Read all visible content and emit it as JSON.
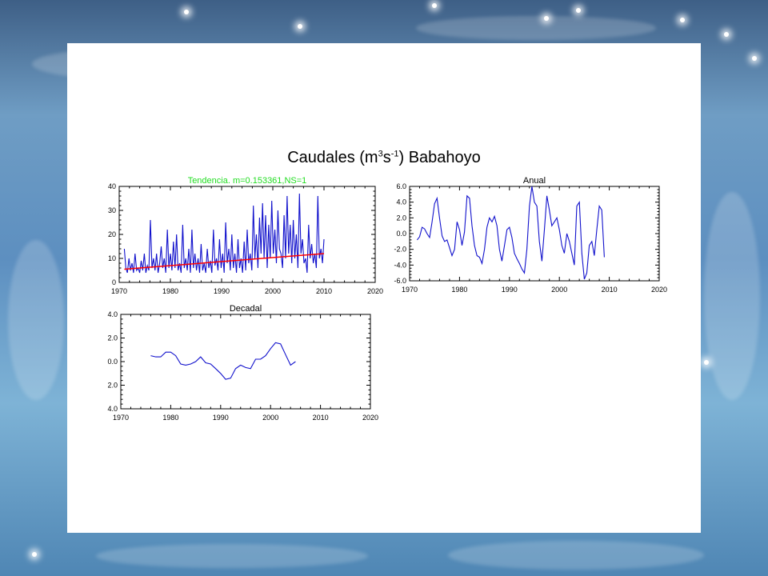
{
  "slide": {
    "title": {
      "prefix": "Caudales (m",
      "sup1": "3",
      "mid": "s",
      "sup2": "-1",
      "suffix": ") Babahoyo"
    }
  },
  "colors": {
    "line": "#1111cc",
    "trend": "#ff0000",
    "trend_label": "#22dd22"
  },
  "chart_data": [
    {
      "type": "line",
      "title": "Tendencia. m=0.153361,NS=1",
      "xlabel": "",
      "ylabel": "",
      "xlim": [
        1970,
        2020
      ],
      "ylim": [
        0,
        40
      ],
      "xticks": [
        "1970",
        "1980",
        "1990",
        "2000",
        "2010",
        "2020"
      ],
      "yticks": [
        "0",
        "10",
        "20",
        "30",
        "40"
      ],
      "grid": false,
      "series": [
        {
          "x": [
            1971.0,
            1971.3,
            1971.6,
            1971.9,
            1972.2,
            1972.5,
            1972.8,
            1973.1,
            1973.4,
            1973.7,
            1974.0,
            1974.3,
            1974.6,
            1974.9,
            1975.2,
            1975.5,
            1975.8,
            1976.1,
            1976.4,
            1976.7,
            1977.0,
            1977.3,
            1977.6,
            1977.9,
            1978.2,
            1978.5,
            1978.8,
            1979.1,
            1979.4,
            1979.7,
            1980.0,
            1980.3,
            1980.6,
            1980.9,
            1981.2,
            1981.5,
            1981.8,
            1982.1,
            1982.4,
            1982.7,
            1983.0,
            1983.3,
            1983.6,
            1983.9,
            1984.2,
            1984.5,
            1984.8,
            1985.1,
            1985.4,
            1985.7,
            1986.0,
            1986.3,
            1986.6,
            1986.9,
            1987.2,
            1987.5,
            1987.8,
            1988.1,
            1988.4,
            1988.7,
            1989.0,
            1989.3,
            1989.6,
            1989.9,
            1990.2,
            1990.5,
            1990.8,
            1991.1,
            1991.4,
            1991.7,
            1992.0,
            1992.3,
            1992.6,
            1992.9,
            1993.2,
            1993.5,
            1993.8,
            1994.1,
            1994.4,
            1994.7,
            1995.0,
            1995.3,
            1995.6,
            1995.9,
            1996.2,
            1996.5,
            1996.8,
            1997.1,
            1997.4,
            1997.7,
            1998.0,
            1998.3,
            1998.6,
            1998.9,
            1999.2,
            1999.5,
            1999.8,
            2000.1,
            2000.4,
            2000.7,
            2001.0,
            2001.3,
            2001.6,
            2001.9,
            2002.2,
            2002.5,
            2002.8,
            2003.1,
            2003.4,
            2003.7,
            2004.0,
            2004.3,
            2004.6,
            2004.9,
            2005.2,
            2005.5,
            2005.8,
            2006.1,
            2006.4,
            2006.7,
            2007.0,
            2007.3,
            2007.6,
            2007.9,
            2008.2,
            2008.5,
            2008.8,
            2009.1,
            2009.4,
            2009.7,
            2010.0
          ],
          "y": [
            14,
            6,
            4,
            10,
            5,
            8,
            4,
            12,
            5,
            6,
            4,
            9,
            5,
            12,
            4,
            7,
            5,
            26,
            6,
            10,
            5,
            12,
            4,
            8,
            15,
            6,
            10,
            4,
            22,
            6,
            12,
            5,
            17,
            6,
            20,
            5,
            8,
            4,
            24,
            6,
            10,
            5,
            14,
            4,
            22,
            6,
            12,
            5,
            10,
            4,
            16,
            5,
            8,
            4,
            14,
            6,
            9,
            4,
            22,
            7,
            10,
            5,
            18,
            6,
            12,
            4,
            25,
            8,
            14,
            5,
            20,
            6,
            12,
            4,
            18,
            6,
            10,
            4,
            17,
            5,
            22,
            8,
            12,
            5,
            32,
            10,
            20,
            6,
            27,
            12,
            33,
            10,
            28,
            6,
            24,
            10,
            34,
            12,
            22,
            8,
            30,
            14,
            12,
            6,
            28,
            10,
            36,
            12,
            24,
            8,
            26,
            10,
            20,
            6,
            37,
            12,
            18,
            8,
            10,
            4,
            24,
            10,
            16,
            8,
            12,
            6,
            36,
            10,
            14,
            8,
            18
          ],
          "name": ""
        }
      ],
      "trend": {
        "x": [
          1971,
          2010
        ],
        "y": [
          5.5,
          12.0
        ]
      }
    },
    {
      "type": "line",
      "title": "Anual",
      "xlabel": "",
      "ylabel": "",
      "xlim": [
        1970,
        2020
      ],
      "ylim": [
        -6.0,
        6.0
      ],
      "xticks": [
        "1970",
        "1980",
        "1990",
        "2000",
        "2010",
        "2020"
      ],
      "yticks": [
        "-6.0",
        "-4.0",
        "-2.0",
        "0.0",
        "2.0",
        "4.0",
        "6.0"
      ],
      "grid": false,
      "series": [
        {
          "x": [
            1971.5,
            1972,
            1972.5,
            1973,
            1973.5,
            1974,
            1974.5,
            1975,
            1975.5,
            1976,
            1976.5,
            1977,
            1977.5,
            1978,
            1978.5,
            1979,
            1979.5,
            1980,
            1980.5,
            1981,
            1981.5,
            1982,
            1982.5,
            1983,
            1983.5,
            1984,
            1984.5,
            1985,
            1985.5,
            1986,
            1986.5,
            1987,
            1987.5,
            1988,
            1988.5,
            1989,
            1989.5,
            1990,
            1990.5,
            1991,
            1991.5,
            1992,
            1992.5,
            1993,
            1993.5,
            1994,
            1994.5,
            1995,
            1995.5,
            1996,
            1996.5,
            1997,
            1997.5,
            1998,
            1998.5,
            1999,
            1999.5,
            2000,
            2000.5,
            2001,
            2001.5,
            2002,
            2002.5,
            2003,
            2003.5,
            2004,
            2004.5,
            2005,
            2005.5,
            2006,
            2006.5,
            2007,
            2007.5,
            2008,
            2008.5,
            2009
          ],
          "y": [
            -0.8,
            -0.4,
            0.8,
            0.6,
            0.0,
            -0.5,
            1.5,
            3.8,
            4.5,
            2.0,
            -0.3,
            -1.0,
            -0.8,
            -1.8,
            -2.8,
            -2.0,
            1.5,
            0.5,
            -1.5,
            0.2,
            4.8,
            4.5,
            1.0,
            -1.5,
            -2.8,
            -3.0,
            -3.8,
            -2.0,
            0.8,
            2.0,
            1.5,
            2.2,
            1.0,
            -2.0,
            -3.5,
            -1.5,
            0.5,
            0.8,
            -0.5,
            -2.5,
            -3.2,
            -3.8,
            -4.5,
            -5.0,
            -2.0,
            3.5,
            6.0,
            4.0,
            3.5,
            -1.0,
            -3.5,
            0.5,
            4.8,
            3.0,
            1.0,
            1.5,
            2.0,
            0.5,
            -1.5,
            -2.5,
            0.0,
            -1.0,
            -2.5,
            -4.0,
            3.5,
            4.0,
            -2.5,
            -5.8,
            -5.0,
            -1.5,
            -1.0,
            -2.8,
            0.5,
            3.5,
            3.0,
            -3.0
          ],
          "name": ""
        }
      ]
    },
    {
      "type": "line",
      "title": "Decadal",
      "xlabel": "",
      "ylabel": "",
      "xlim": [
        1970,
        2020
      ],
      "ylim": [
        -4.0,
        4.0
      ],
      "xticks": [
        "1970",
        "1980",
        "1990",
        "2000",
        "2010",
        "2020"
      ],
      "yticks": [
        "4.0",
        "2.0",
        "0.0",
        "2.0",
        "4.0"
      ],
      "grid": false,
      "series": [
        {
          "x": [
            1976,
            1977,
            1978,
            1979,
            1980,
            1981,
            1982,
            1983,
            1984,
            1985,
            1986,
            1987,
            1988,
            1989,
            1990,
            1991,
            1992,
            1993,
            1994,
            1995,
            1996,
            1997,
            1998,
            1999,
            2000,
            2001,
            2002,
            2003,
            2004,
            2005
          ],
          "y": [
            0.5,
            0.4,
            0.4,
            0.8,
            0.8,
            0.5,
            -0.2,
            -0.3,
            -0.2,
            0.0,
            0.4,
            -0.1,
            -0.2,
            -0.6,
            -1.0,
            -1.5,
            -1.4,
            -0.6,
            -0.3,
            -0.5,
            -0.6,
            0.2,
            0.2,
            0.5,
            1.1,
            1.6,
            1.5,
            0.6,
            -0.3,
            0.0
          ],
          "name": ""
        }
      ]
    }
  ]
}
